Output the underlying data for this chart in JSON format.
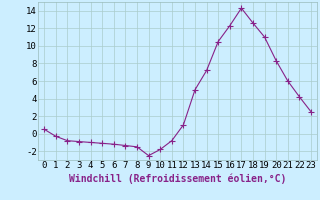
{
  "x": [
    0,
    1,
    2,
    3,
    4,
    5,
    6,
    7,
    8,
    9,
    10,
    11,
    12,
    13,
    14,
    15,
    16,
    17,
    18,
    19,
    20,
    21,
    22,
    23
  ],
  "y": [
    0.5,
    -0.3,
    -0.8,
    -0.9,
    -1.0,
    -1.1,
    -1.2,
    -1.35,
    -1.5,
    -2.5,
    -1.8,
    -0.8,
    1.0,
    5.0,
    7.2,
    10.5,
    12.3,
    14.3,
    12.6,
    11.0,
    8.3,
    6.0,
    4.2,
    2.5
  ],
  "xlabel": "Windchill (Refroidissement éolien,°C)",
  "line_color": "#882288",
  "marker": "+",
  "bg_color": "#cceeff",
  "grid_color": "#aacccc",
  "ylim": [
    -3,
    15
  ],
  "xlim": [
    -0.5,
    23.5
  ],
  "yticks": [
    -2,
    0,
    2,
    4,
    6,
    8,
    10,
    12,
    14
  ],
  "xticks": [
    0,
    1,
    2,
    3,
    4,
    5,
    6,
    7,
    8,
    9,
    10,
    11,
    12,
    13,
    14,
    15,
    16,
    17,
    18,
    19,
    20,
    21,
    22,
    23
  ],
  "tick_fontsize": 6.5,
  "label_fontsize": 7.0,
  "linewidth": 0.8,
  "markersize": 4,
  "markeredgewidth": 0.8
}
